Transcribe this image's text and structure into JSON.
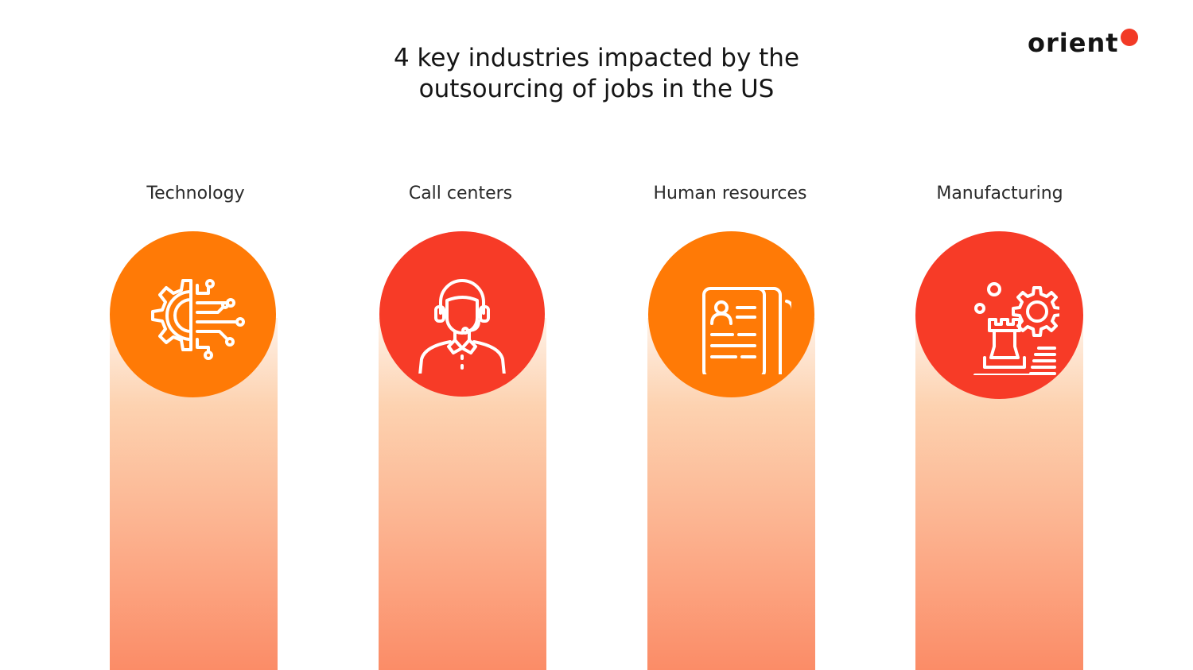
{
  "header": {
    "title_line1": "4 key industries impacted by the",
    "title_line2": "outsourcing of jobs in the US"
  },
  "brand": {
    "logo_text": "orient",
    "dot_color": "#f23a26"
  },
  "industries": [
    {
      "label": "Technology",
      "icon": "gear-circuit-icon",
      "color": "#ff7a06"
    },
    {
      "label": "Call centers",
      "icon": "headset-agent-icon",
      "color": "#f73b27"
    },
    {
      "label": "Human resources",
      "icon": "resume-documents-icon",
      "color": "#ff7a06"
    },
    {
      "label": "Manufacturing",
      "icon": "chess-rook-gear-icon",
      "color": "#f73b27"
    }
  ]
}
